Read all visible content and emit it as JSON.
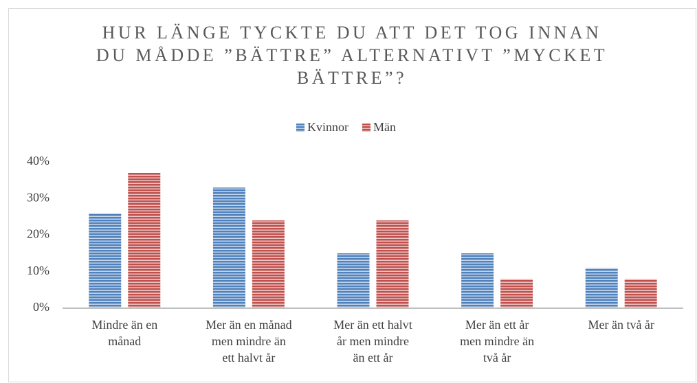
{
  "chart_data": {
    "type": "bar",
    "title": "HUR LÄNGE TYCKTE DU ATT DET TOG INNAN\nDU MÅDDE ”BÄTTRE” ALTERNATIVT ”MYCKET\nBÄTTRE”?",
    "categories": [
      "Mindre än en\nmånad",
      "Mer än en månad\nmen mindre än\nett halvt år",
      "Mer än ett halvt\når men mindre\nän ett år",
      "Mer än ett år\nmen mindre än\ntvå år",
      "Mer än två år"
    ],
    "series": [
      {
        "name": "Kvinnor",
        "color": "#4f81bd",
        "values": [
          26,
          33,
          15,
          15,
          11
        ]
      },
      {
        "name": "Män",
        "color": "#c0504d",
        "values": [
          37,
          24,
          24,
          8,
          8
        ]
      }
    ],
    "ylim": [
      0,
      40
    ],
    "yticks": [
      {
        "value": 0,
        "label": "0%"
      },
      {
        "value": 10,
        "label": "10%"
      },
      {
        "value": 20,
        "label": "20%"
      },
      {
        "value": 30,
        "label": "30%"
      },
      {
        "value": 40,
        "label": "40%"
      }
    ],
    "legend": "top"
  }
}
